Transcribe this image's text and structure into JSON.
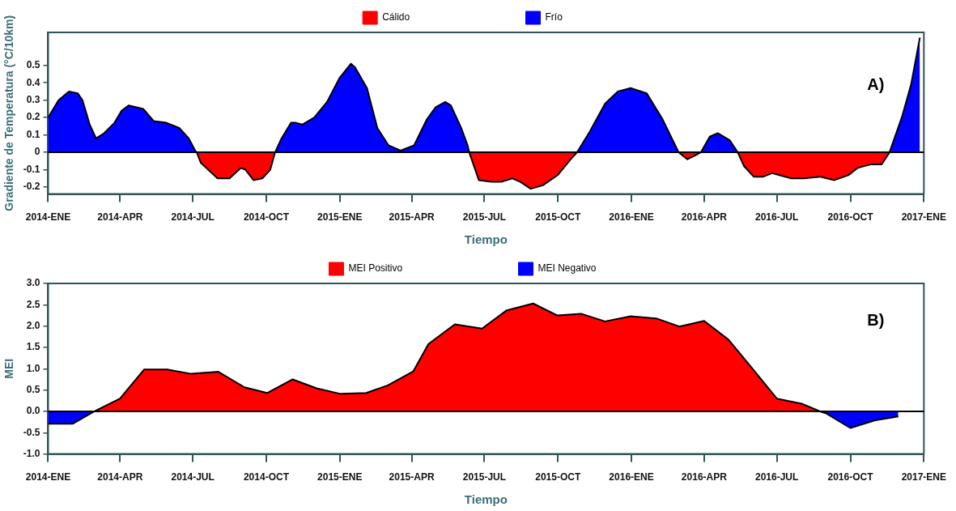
{
  "chart_data": [
    {
      "type": "area",
      "ylabel": "Gradiente de Temperatura (°C/10km)",
      "xlabel": "Tiempo",
      "annotations": [
        "A)"
      ],
      "legend": "top",
      "xlim": [
        "2014-01-01",
        "2017-01-01"
      ],
      "xticks": [
        {
          "value": "2014-01-01",
          "label": "2014-ENE"
        },
        {
          "value": "2014-04-01",
          "label": "2014-APR"
        },
        {
          "value": "2014-07-01",
          "label": "2014-JUL"
        },
        {
          "value": "2014-10-01",
          "label": "2014-OCT"
        },
        {
          "value": "2015-01-01",
          "label": "2015-ENE"
        },
        {
          "value": "2015-04-01",
          "label": "2015-APR"
        },
        {
          "value": "2015-07-01",
          "label": "2015-JUL"
        },
        {
          "value": "2015-10-01",
          "label": "2015-OCT"
        },
        {
          "value": "2016-01-01",
          "label": "2016-ENE"
        },
        {
          "value": "2016-04-01",
          "label": "2016-APR"
        },
        {
          "value": "2016-07-01",
          "label": "2016-JUL"
        },
        {
          "value": "2016-10-01",
          "label": "2016-OCT"
        },
        {
          "value": "2017-01-01",
          "label": "2017-ENE"
        }
      ],
      "ylim": [
        -0.24,
        0.69
      ],
      "yticks": [
        -0.2,
        -0.1,
        0,
        0.1,
        0.2,
        0.3,
        0.4,
        0.5
      ],
      "ref_lines": [
        {
          "axis": "y",
          "value": 0,
          "color": "#000000"
        }
      ],
      "series": [
        {
          "name": "Cálido",
          "color": "#ff0000",
          "x": [
            "2014-07-06",
            "2014-07-11",
            "2014-08-01",
            "2014-08-16",
            "2014-08-30",
            "2014-09-05",
            "2014-09-15",
            "2014-09-26",
            "2014-10-06",
            "2014-10-12",
            "2015-02-01",
            "2015-06-12",
            "2015-06-24",
            "2015-07-10",
            "2015-07-22",
            "2015-08-05",
            "2015-08-15",
            "2015-08-28",
            "2015-09-12",
            "2015-10-01",
            "2015-10-17",
            "2015-10-25",
            "2016-01-01",
            "2016-02-29",
            "2016-03-11",
            "2016-03-24",
            "2016-03-28",
            "2016-04-16",
            "2016-05-13",
            "2016-05-21",
            "2016-06-02",
            "2016-06-14",
            "2016-06-25",
            "2016-07-19",
            "2016-08-04",
            "2016-08-24",
            "2016-09-11",
            "2016-09-29",
            "2016-10-10",
            "2016-10-26",
            "2016-11-09",
            "2016-11-19"
          ],
          "values": [
            0,
            -0.06,
            -0.15,
            -0.15,
            -0.09,
            -0.1,
            -0.16,
            -0.15,
            -0.1,
            0,
            null,
            0,
            -0.16,
            -0.17,
            -0.17,
            -0.15,
            -0.17,
            -0.21,
            -0.19,
            -0.13,
            -0.04,
            0,
            null,
            0,
            -0.04,
            -0.01,
            0,
            null,
            0,
            -0.08,
            -0.14,
            -0.14,
            -0.12,
            -0.15,
            -0.15,
            -0.14,
            -0.16,
            -0.13,
            -0.09,
            -0.07,
            -0.07,
            0
          ]
        },
        {
          "name": "Frío",
          "color": "#0000ff",
          "x": [
            "2014-01-01",
            "2014-01-14",
            "2014-01-27",
            "2014-02-07",
            "2014-02-13",
            "2014-02-22",
            "2014-03-02",
            "2014-03-12",
            "2014-03-25",
            "2014-04-03",
            "2014-04-12",
            "2014-04-30",
            "2014-05-13",
            "2014-05-29",
            "2014-06-14",
            "2014-06-26",
            "2014-07-04",
            "2014-07-06",
            "2014-08-16",
            "2014-10-12",
            "2014-10-20",
            "2014-11-01",
            "2014-11-07",
            "2014-11-15",
            "2014-11-30",
            "2014-12-16",
            "2015-01-01",
            "2015-01-15",
            "2015-01-20",
            "2015-02-04",
            "2015-02-17",
            "2015-03-03",
            "2015-03-18",
            "2015-04-04",
            "2015-04-20",
            "2015-05-01",
            "2015-05-13",
            "2015-05-20",
            "2015-06-02",
            "2015-06-10",
            "2015-06-12",
            "2015-08-16",
            "2015-10-25",
            "2015-11-10",
            "2015-11-29",
            "2015-12-15",
            "2015-12-31",
            "2016-01-20",
            "2016-02-09",
            "2016-02-28",
            "2016-02-29",
            "2016-03-13",
            "2016-03-28",
            "2016-04-08",
            "2016-04-18",
            "2016-05-03",
            "2016-05-13",
            "2016-08-01",
            "2016-11-19",
            "2016-12-05",
            "2016-12-16",
            "2016-12-27"
          ],
          "values": [
            0.2,
            0.3,
            0.35,
            0.34,
            0.3,
            0.16,
            0.08,
            0.11,
            0.17,
            0.24,
            0.27,
            0.25,
            0.18,
            0.17,
            0.14,
            0.08,
            0.01,
            0,
            null,
            0,
            0.08,
            0.17,
            0.17,
            0.16,
            0.2,
            0.29,
            0.43,
            0.51,
            0.49,
            0.37,
            0.14,
            0.04,
            0.01,
            0.04,
            0.19,
            0.26,
            0.29,
            0.27,
            0.14,
            0.04,
            0,
            null,
            0,
            0.12,
            0.28,
            0.35,
            0.37,
            0.34,
            0.19,
            0.01,
            0,
            null,
            0,
            0.09,
            0.11,
            0.07,
            0,
            null,
            0,
            0.21,
            0.39,
            0.66
          ]
        }
      ]
    },
    {
      "type": "area",
      "ylabel": "MEI",
      "xlabel": "Tiempo",
      "annotations": [
        "B)"
      ],
      "legend": "top",
      "xlim": [
        "2014-01-01",
        "2017-01-01"
      ],
      "xticks": [
        {
          "value": "2014-01-01",
          "label": "2014-ENE"
        },
        {
          "value": "2014-04-01",
          "label": "2014-APR"
        },
        {
          "value": "2014-07-01",
          "label": "2014-JUL"
        },
        {
          "value": "2014-10-01",
          "label": "2014-OCT"
        },
        {
          "value": "2015-01-01",
          "label": "2015-ENE"
        },
        {
          "value": "2015-04-01",
          "label": "2015-APR"
        },
        {
          "value": "2015-07-01",
          "label": "2015-JUL"
        },
        {
          "value": "2015-10-01",
          "label": "2015-OCT"
        },
        {
          "value": "2016-01-01",
          "label": "2016-ENE"
        },
        {
          "value": "2016-04-01",
          "label": "2016-APR"
        },
        {
          "value": "2016-07-01",
          "label": "2016-JUL"
        },
        {
          "value": "2016-10-01",
          "label": "2016-OCT"
        },
        {
          "value": "2017-01-01",
          "label": "2017-ENE"
        }
      ],
      "ylim": [
        -1,
        3
      ],
      "yticks": [
        {
          "value": -1,
          "label": "-1.0"
        },
        -0.5,
        {
          "value": 0,
          "label": "0.0"
        },
        0.5,
        {
          "value": 1,
          "label": "1.0"
        },
        1.5,
        {
          "value": 2,
          "label": "2.0"
        },
        2.5,
        {
          "value": 3,
          "label": "3.0"
        }
      ],
      "ref_lines": [
        {
          "axis": "y",
          "value": 0,
          "color": "#000000"
        }
      ],
      "series": [
        {
          "name": "MEI Positivo",
          "color": "#ff0000",
          "x": [
            "2014-02-28",
            "2014-04-01",
            "2014-05-01",
            "2014-05-30",
            "2014-06-29",
            "2014-08-02",
            "2014-09-03",
            "2014-10-02",
            "2014-11-03",
            "2014-12-03",
            "2015-01-02",
            "2015-02-03",
            "2015-03-02",
            "2015-04-03",
            "2015-04-22",
            "2015-05-25",
            "2015-06-28",
            "2015-07-29",
            "2015-08-31",
            "2015-09-30",
            "2015-10-30",
            "2015-11-29",
            "2015-12-31",
            "2016-02-01",
            "2016-03-01",
            "2016-04-01",
            "2016-05-01",
            "2016-06-01",
            "2016-07-01",
            "2016-08-01",
            "2016-08-24"
          ],
          "values": [
            0,
            0.3,
            0.98,
            0.98,
            0.88,
            0.93,
            0.57,
            0.43,
            0.75,
            0.54,
            0.41,
            0.43,
            0.61,
            0.94,
            1.58,
            2.04,
            1.94,
            2.37,
            2.53,
            2.25,
            2.29,
            2.11,
            2.23,
            2.18,
            1.99,
            2.12,
            1.69,
            0.99,
            0.3,
            0.18,
            0
          ]
        },
        {
          "name": "MEI Negativo",
          "color": "#0000ff",
          "x": [
            "2014-01-01",
            "2014-02-01",
            "2014-02-28",
            "2015-05-01",
            "2016-08-24",
            "2016-09-01",
            "2016-10-01",
            "2016-11-01",
            "2016-11-30"
          ],
          "values": [
            -0.29,
            -0.29,
            0,
            null,
            0,
            -0.05,
            -0.39,
            -0.21,
            -0.12
          ]
        }
      ]
    }
  ]
}
